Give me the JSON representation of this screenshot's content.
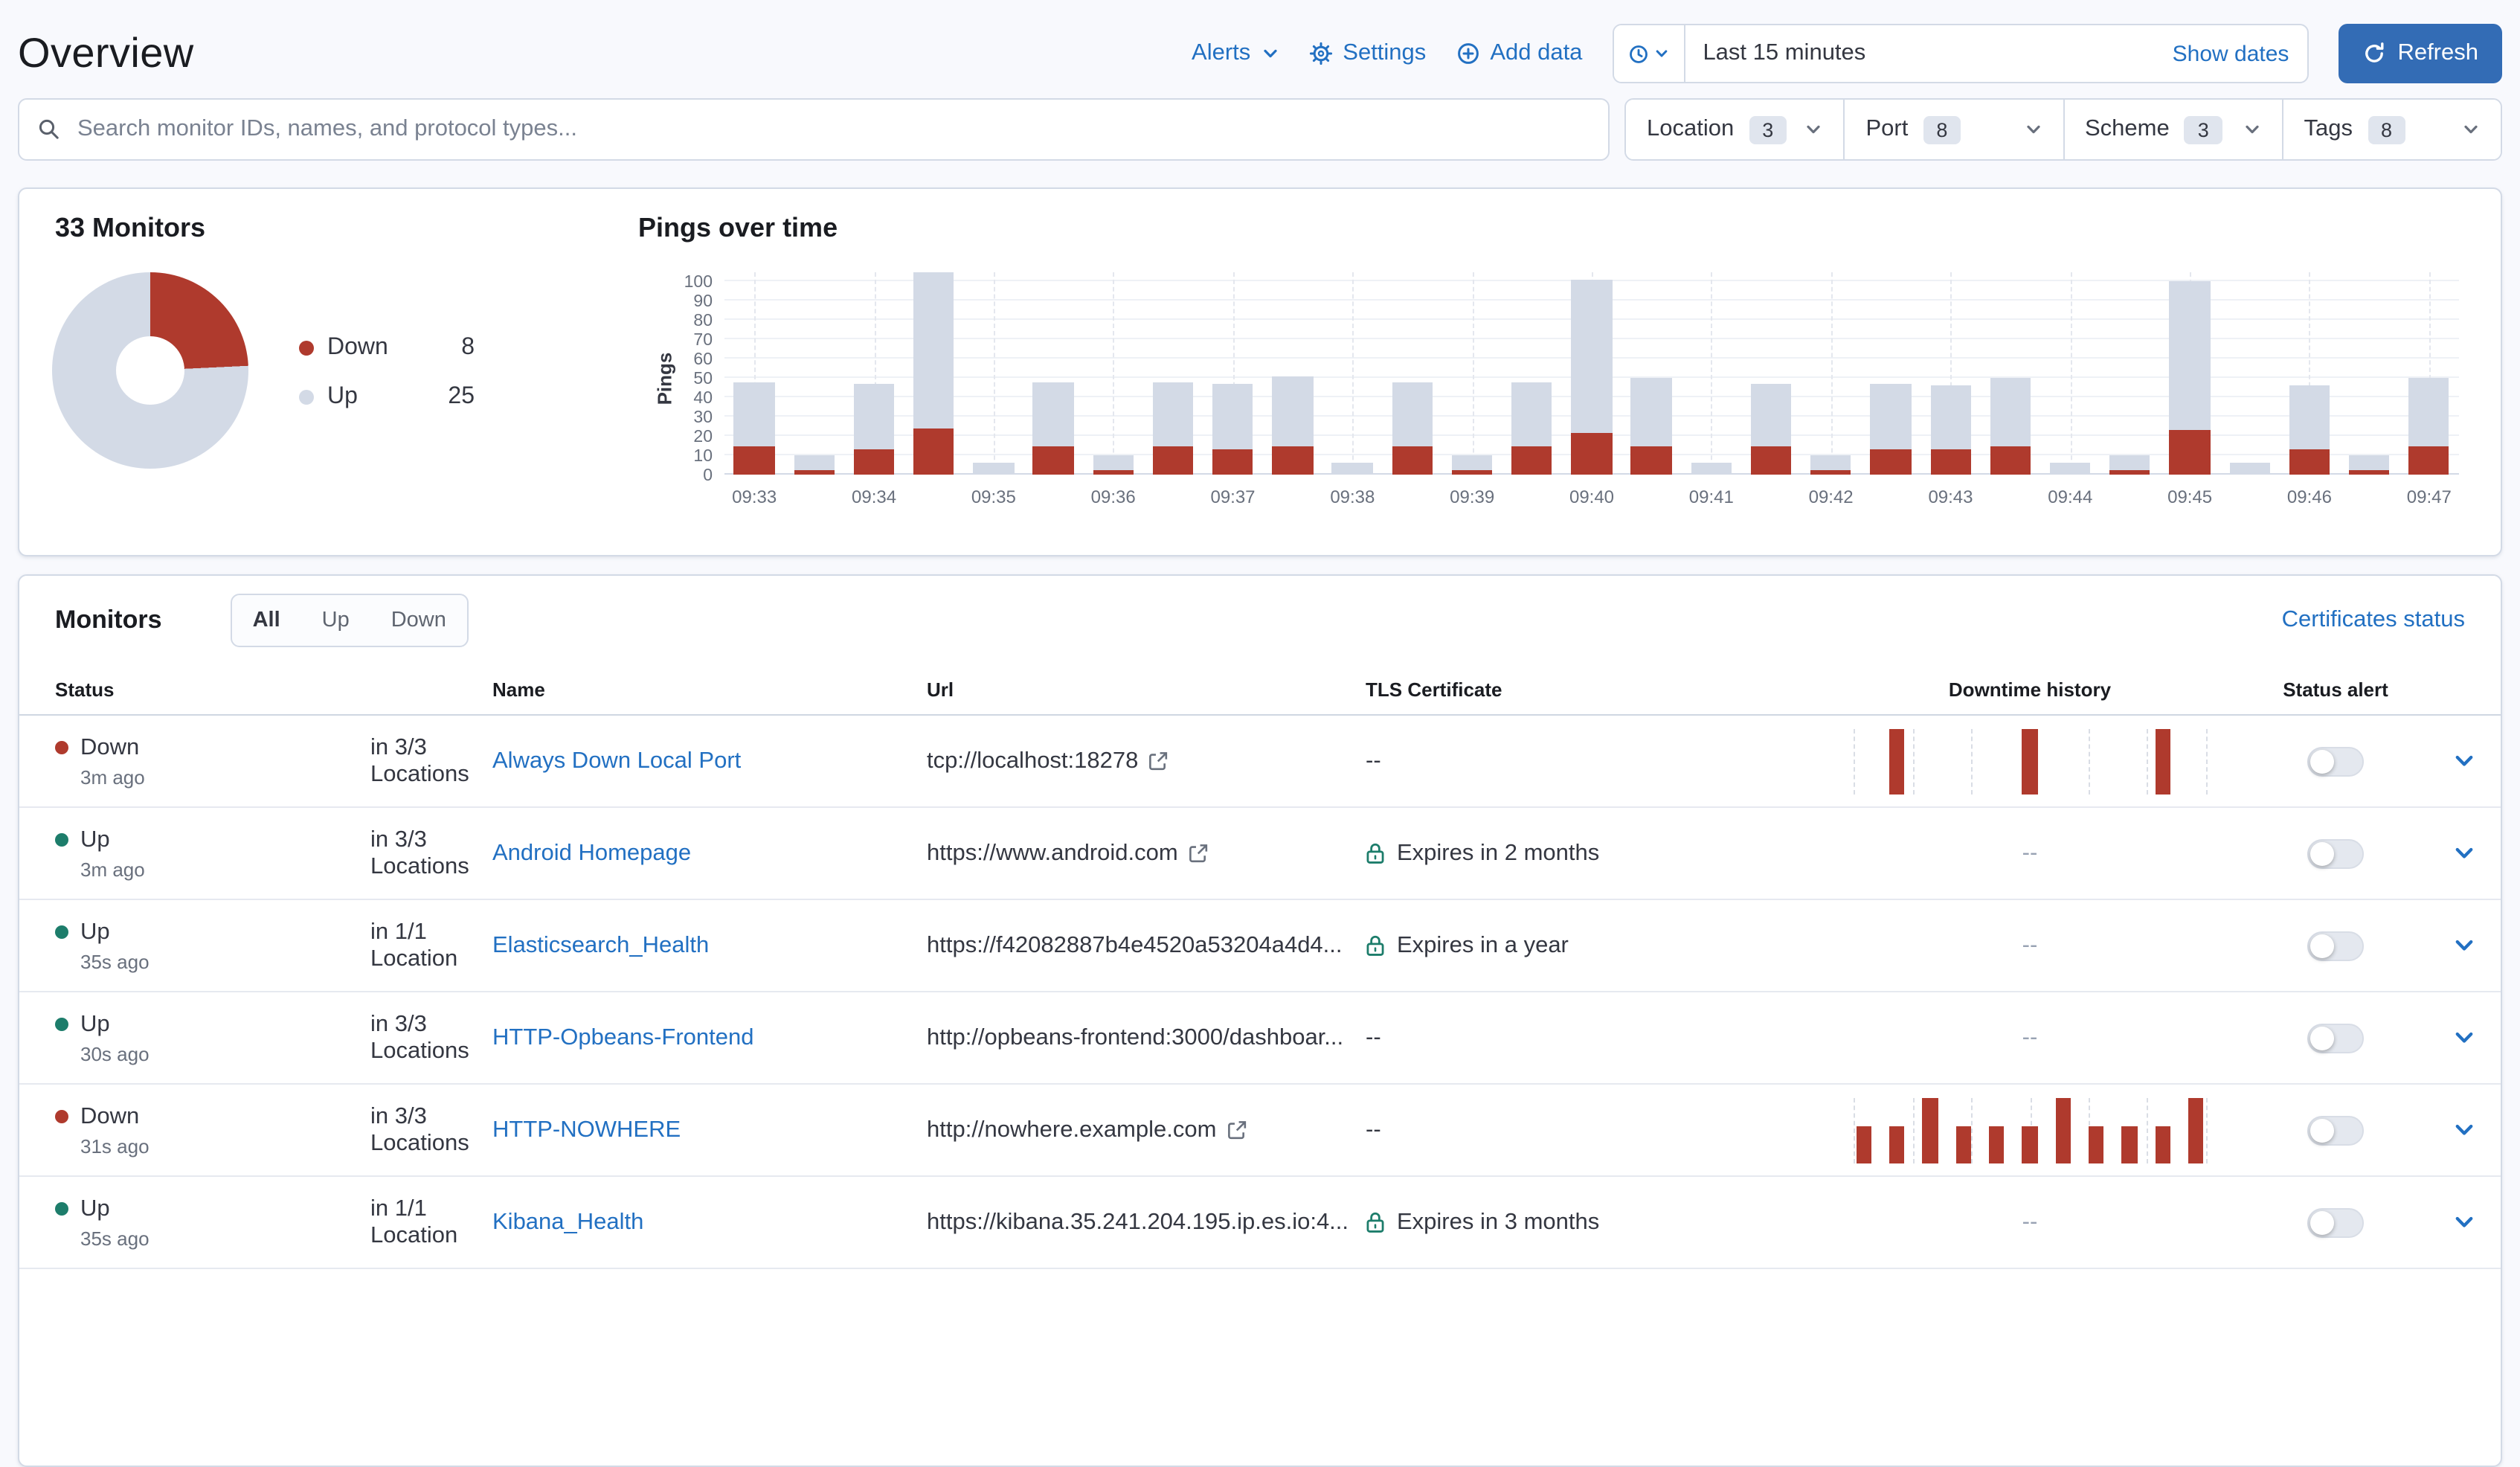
{
  "page": {
    "title": "Overview"
  },
  "topbar": {
    "alerts_label": "Alerts",
    "settings_label": "Settings",
    "add_data_label": "Add data",
    "time_range": "Last 15 minutes",
    "show_dates_label": "Show dates",
    "refresh_label": "Refresh"
  },
  "search": {
    "placeholder": "Search monitor IDs, names, and protocol types..."
  },
  "filters": [
    {
      "label": "Location",
      "count": 3
    },
    {
      "label": "Port",
      "count": 8
    },
    {
      "label": "Scheme",
      "count": 3
    },
    {
      "label": "Tags",
      "count": 8
    }
  ],
  "snapshot": {
    "title": "33 Monitors",
    "legend": [
      {
        "label": "Down",
        "value": 8,
        "color": "#af3a2d"
      },
      {
        "label": "Up",
        "value": 25,
        "color": "#d3dae6"
      }
    ]
  },
  "chart_data": {
    "type": "bar",
    "stacked": true,
    "title": "Pings over time",
    "ylabel": "Pings",
    "xlabel": "",
    "ylim": [
      0,
      100
    ],
    "y_ticks": [
      0,
      10,
      20,
      30,
      40,
      50,
      60,
      70,
      80,
      90,
      100
    ],
    "grid": true,
    "bucket_seconds": 30,
    "x_times": [
      "09:33:00",
      "09:33:30",
      "09:34:00",
      "09:34:30",
      "09:35:00",
      "09:35:30",
      "09:36:00",
      "09:36:30",
      "09:37:00",
      "09:37:30",
      "09:38:00",
      "09:38:30",
      "09:39:00",
      "09:39:30",
      "09:40:00",
      "09:40:30",
      "09:41:00",
      "09:41:30",
      "09:42:00",
      "09:42:30",
      "09:43:00",
      "09:43:30",
      "09:44:00",
      "09:44:30",
      "09:45:00",
      "09:45:30",
      "09:46:00",
      "09:46:30",
      "09:47:00"
    ],
    "x_tick_labels": [
      "09:33",
      "09:34",
      "09:35",
      "09:36",
      "09:37",
      "09:38",
      "09:39",
      "09:40",
      "09:41",
      "09:42",
      "09:43",
      "09:44",
      "09:45",
      "09:46",
      "09:47"
    ],
    "series": [
      {
        "name": "Down",
        "color": "#af3a2d",
        "values": [
          15,
          2,
          13,
          24,
          0,
          15,
          2,
          15,
          13,
          15,
          0,
          15,
          2,
          15,
          22,
          15,
          0,
          15,
          2,
          13,
          13,
          15,
          0,
          2,
          23,
          0,
          13,
          2,
          15
        ]
      },
      {
        "name": "Up",
        "color": "#d3dae6",
        "values": [
          33,
          8,
          34,
          81,
          6,
          33,
          8,
          33,
          34,
          36,
          6,
          33,
          8,
          33,
          79,
          35,
          6,
          32,
          8,
          34,
          33,
          35,
          6,
          8,
          77,
          6,
          33,
          8,
          35
        ]
      }
    ]
  },
  "monitors": {
    "heading": "Monitors",
    "tabs": [
      "All",
      "Up",
      "Down"
    ],
    "active_tab": "All",
    "certificates_link": "Certificates status",
    "columns": [
      "Status",
      "Name",
      "Url",
      "TLS Certificate",
      "Downtime history",
      "Status alert"
    ],
    "rows": [
      {
        "status": "Down",
        "ago": "3m ago",
        "locations": "in 3/3 Locations",
        "name": "Always Down Local Port",
        "url": "tcp://localhost:18278",
        "url_external": true,
        "tls": "--",
        "tls_lock": false,
        "downtime": {
          "type": "bars",
          "bars": [
            0,
            100,
            0,
            0,
            0,
            100,
            0,
            0,
            0,
            100,
            0
          ]
        },
        "alert_on": false
      },
      {
        "status": "Up",
        "ago": "3m ago",
        "locations": "in 3/3 Locations",
        "name": "Android Homepage",
        "url": "https://www.android.com",
        "url_external": true,
        "tls": "Expires in 2 months",
        "tls_lock": true,
        "downtime": {
          "type": "dashes",
          "text": "--"
        },
        "alert_on": false
      },
      {
        "status": "Up",
        "ago": "35s ago",
        "locations": "in 1/1 Location",
        "name": "Elasticsearch_Health",
        "url": "https://f42082887b4e4520a53204a4d4...",
        "url_external": false,
        "tls": "Expires in a year",
        "tls_lock": true,
        "downtime": {
          "type": "dashes",
          "text": "--"
        },
        "alert_on": false
      },
      {
        "status": "Up",
        "ago": "30s ago",
        "locations": "in 3/3 Locations",
        "name": "HTTP-Opbeans-Frontend",
        "url": "http://opbeans-frontend:3000/dashboar...",
        "url_external": false,
        "tls": "--",
        "tls_lock": false,
        "downtime": {
          "type": "dashes",
          "text": "--"
        },
        "alert_on": false
      },
      {
        "status": "Down",
        "ago": "31s ago",
        "locations": "in 3/3 Locations",
        "name": "HTTP-NOWHERE",
        "url": "http://nowhere.example.com",
        "url_external": true,
        "tls": "--",
        "tls_lock": false,
        "downtime": {
          "type": "bars",
          "bars": [
            55,
            55,
            100,
            55,
            55,
            55,
            100,
            55,
            55,
            55,
            100
          ]
        },
        "alert_on": false
      },
      {
        "status": "Up",
        "ago": "35s ago",
        "locations": "in 1/1 Location",
        "name": "Kibana_Health",
        "url": "https://kibana.35.241.204.195.ip.es.io:4...",
        "url_external": false,
        "tls": "Expires in 3 months",
        "tls_lock": true,
        "downtime": {
          "type": "dashes",
          "text": "--"
        },
        "alert_on": false
      }
    ]
  },
  "colors": {
    "down_red": "#af3a2d",
    "up_bar_gray": "#d3dae6",
    "up_dot_green": "#1d7d6b",
    "link_blue": "#2270c2",
    "refresh_button_blue": "#336cb5",
    "badge_bg": "#e0e5ee",
    "panel_border": "#d3dae6",
    "sparkline_dash_gray": "#98a2b3"
  }
}
